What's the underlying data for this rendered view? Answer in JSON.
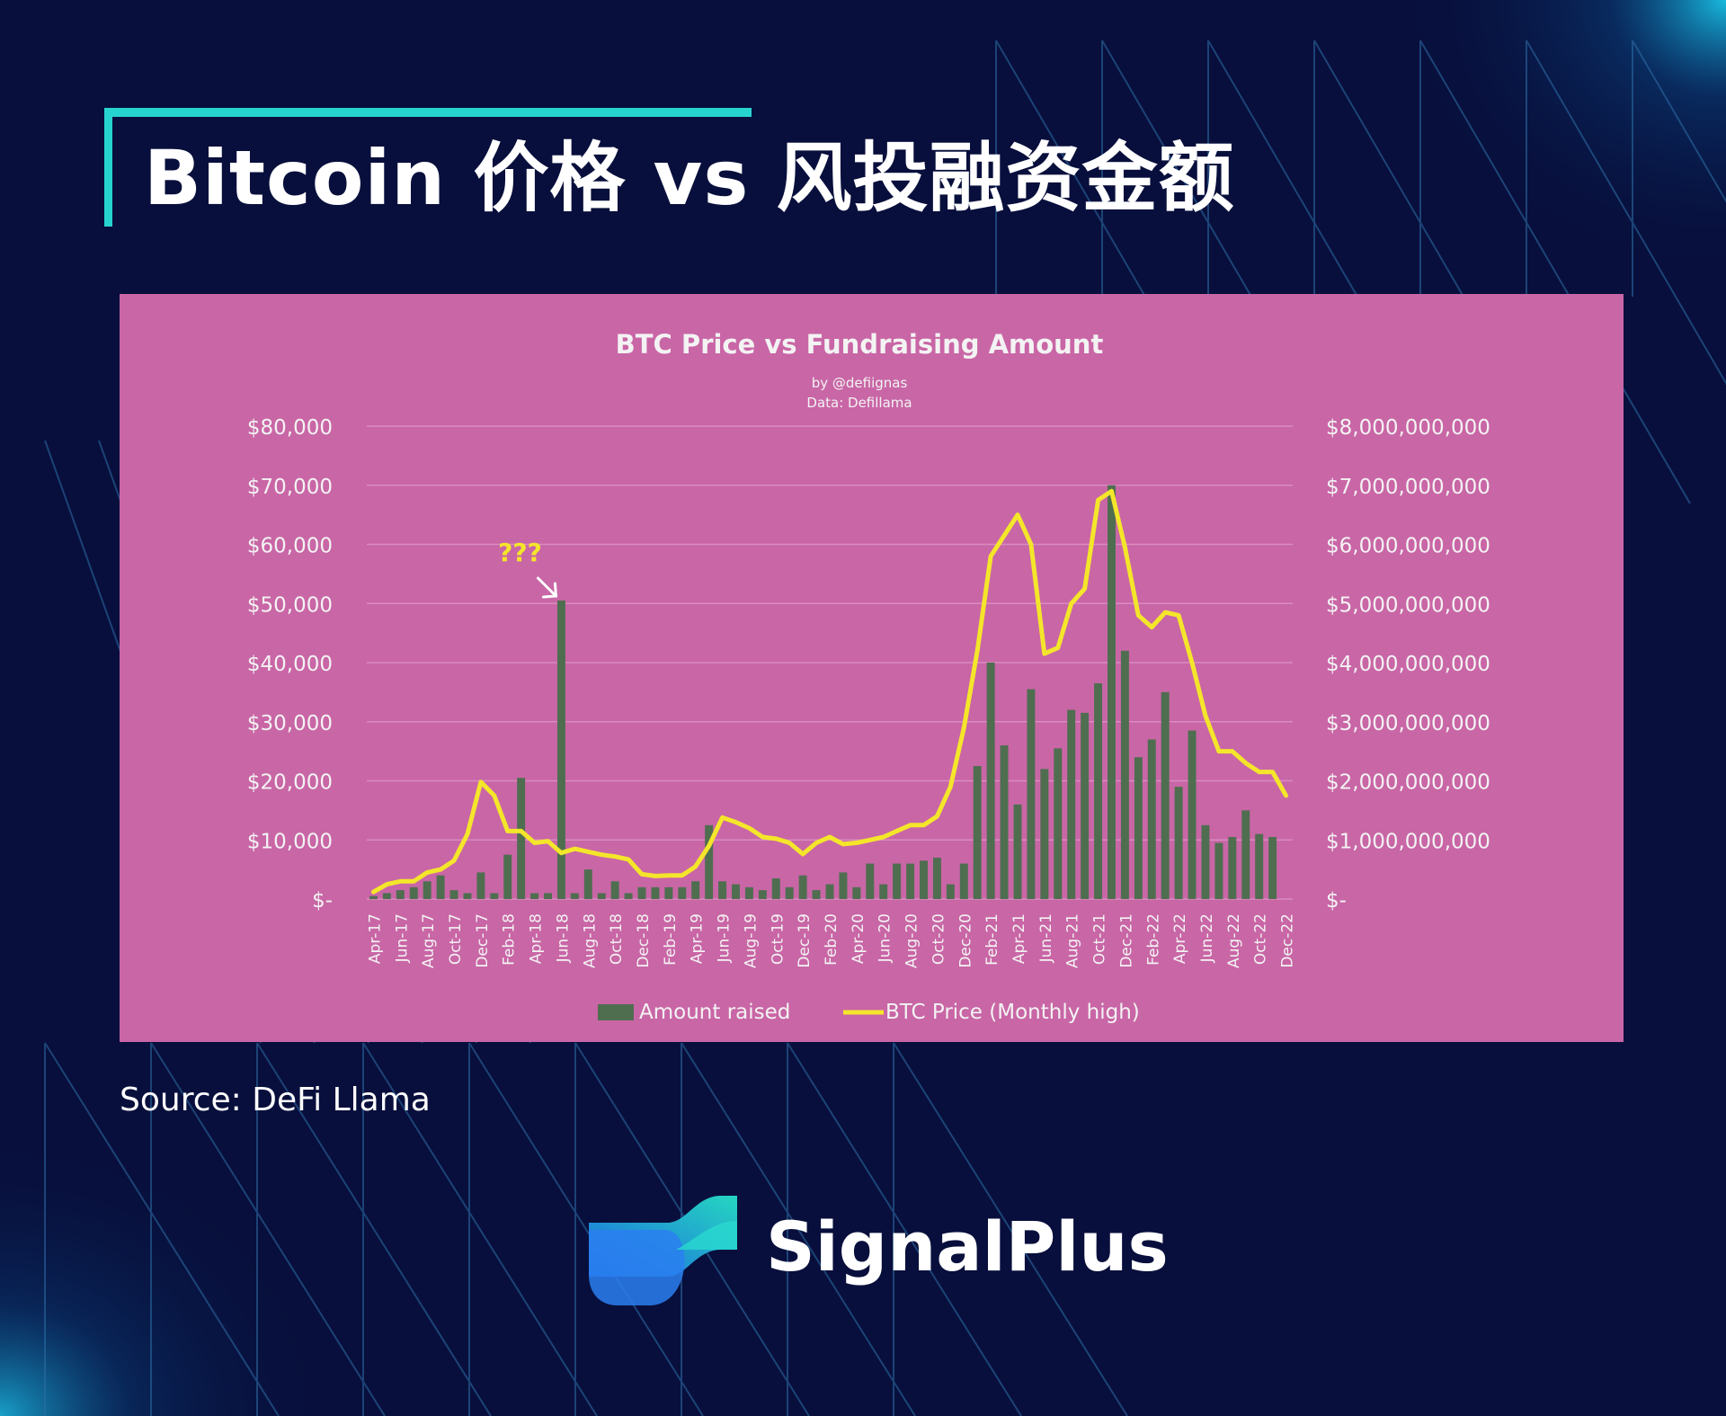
{
  "page": {
    "title": "Bitcoin 价格 vs 风投融资金额",
    "source": "Source: DeFi Llama",
    "brand": "SignalPlus"
  },
  "colors": {
    "background": "#080f3c",
    "accent": "#27d3cf",
    "chart_background": "#c966a6",
    "bar": "#4f6e50",
    "line": "#f4e62a",
    "annotation": "#f4e62a"
  },
  "icons": {
    "brand_logo": "signalplus-logo",
    "annotation_arrow": "arrow-down-right-icon"
  },
  "chart_data": {
    "type": "bar",
    "title": "BTC Price vs Fundraising Amount",
    "subtitle_lines": [
      "by @defiignas",
      "Data: Defillama"
    ],
    "annotation": {
      "text": "???",
      "category": "Jun-18"
    },
    "legend": {
      "position": "bottom",
      "items": [
        "Amount raised",
        "BTC Price (Monthly high)"
      ]
    },
    "y_left": {
      "ylim": [
        0,
        80000
      ],
      "ticks": [
        0,
        10000,
        20000,
        30000,
        40000,
        50000,
        60000,
        70000,
        80000
      ],
      "tick_labels": [
        "$-",
        "$10,000",
        "$20,000",
        "$30,000",
        "$40,000",
        "$50,000",
        "$60,000",
        "$70,000",
        "$80,000"
      ]
    },
    "y_right": {
      "ylim": [
        0,
        8000000000
      ],
      "ticks": [
        0,
        1000000000,
        2000000000,
        3000000000,
        4000000000,
        5000000000,
        6000000000,
        7000000000,
        8000000000
      ],
      "tick_labels": [
        "$-",
        "$1,000,000,000",
        "$2,000,000,000",
        "$3,000,000,000",
        "$4,000,000,000",
        "$5,000,000,000",
        "$6,000,000,000",
        "$7,000,000,000",
        "$8,000,000,000"
      ]
    },
    "grid": true,
    "categories": [
      "Apr-17",
      "May-17",
      "Jun-17",
      "Jul-17",
      "Aug-17",
      "Sep-17",
      "Oct-17",
      "Nov-17",
      "Dec-17",
      "Jan-18",
      "Feb-18",
      "Mar-18",
      "Apr-18",
      "May-18",
      "Jun-18",
      "Jul-18",
      "Aug-18",
      "Sep-18",
      "Oct-18",
      "Nov-18",
      "Dec-18",
      "Jan-19",
      "Feb-19",
      "Mar-19",
      "Apr-19",
      "May-19",
      "Jun-19",
      "Jul-19",
      "Aug-19",
      "Sep-19",
      "Oct-19",
      "Nov-19",
      "Dec-19",
      "Jan-20",
      "Feb-20",
      "Mar-20",
      "Apr-20",
      "May-20",
      "Jun-20",
      "Jul-20",
      "Aug-20",
      "Sep-20",
      "Oct-20",
      "Nov-20",
      "Dec-20",
      "Jan-21",
      "Feb-21",
      "Mar-21",
      "Apr-21",
      "May-21",
      "Jun-21",
      "Jul-21",
      "Aug-21",
      "Sep-21",
      "Oct-21",
      "Nov-21",
      "Dec-21",
      "Jan-22",
      "Feb-22",
      "Mar-22",
      "Apr-22",
      "May-22",
      "Jun-22",
      "Jul-22",
      "Aug-22",
      "Sep-22",
      "Oct-22",
      "Nov-22",
      "Dec-22"
    ],
    "tick_labels": [
      "Apr-17",
      "Jun-17",
      "Aug-17",
      "Oct-17",
      "Dec-17",
      "Feb-18",
      "Apr-18",
      "Jun-18",
      "Aug-18",
      "Oct-18",
      "Dec-18",
      "Feb-19",
      "Apr-19",
      "Jun-19",
      "Aug-19",
      "Oct-19",
      "Dec-19",
      "Feb-20",
      "Apr-20",
      "Jun-20",
      "Aug-20",
      "Oct-20",
      "Dec-20",
      "Feb-21",
      "Apr-21",
      "Jun-21",
      "Aug-21",
      "Oct-21",
      "Dec-21",
      "Feb-22",
      "Apr-22",
      "Jun-22",
      "Aug-22",
      "Oct-22",
      "Dec-22"
    ],
    "series": [
      {
        "name": "Amount raised",
        "type": "bar",
        "axis": "right",
        "values": [
          50000000,
          100000000,
          150000000,
          200000000,
          300000000,
          400000000,
          150000000,
          100000000,
          450000000,
          100000000,
          750000000,
          2050000000,
          100000000,
          100000000,
          5050000000,
          100000000,
          500000000,
          100000000,
          300000000,
          100000000,
          200000000,
          200000000,
          200000000,
          200000000,
          300000000,
          1250000000,
          300000000,
          250000000,
          200000000,
          150000000,
          350000000,
          200000000,
          400000000,
          150000000,
          250000000,
          450000000,
          200000000,
          600000000,
          250000000,
          600000000,
          600000000,
          650000000,
          700000000,
          250000000,
          600000000,
          2250000000,
          4000000000,
          2600000000,
          1600000000,
          3550000000,
          2200000000,
          2550000000,
          3200000000,
          3150000000,
          3650000000,
          7000000000,
          4200000000,
          2400000000,
          2700000000,
          3500000000,
          1900000000,
          2850000000,
          1250000000,
          950000000,
          1050000000,
          1500000000,
          1100000000,
          1050000000,
          0
        ]
      },
      {
        "name": "BTC Price (Monthly high)",
        "type": "line",
        "axis": "left",
        "values": [
          1200,
          2500,
          3000,
          3000,
          4500,
          5000,
          6500,
          11000,
          19800,
          17500,
          11500,
          11500,
          9500,
          9800,
          7800,
          8500,
          8000,
          7500,
          7200,
          6700,
          4200,
          3900,
          4000,
          4000,
          5500,
          9000,
          13800,
          13000,
          12000,
          10500,
          10200,
          9500,
          7600,
          9500,
          10500,
          9300,
          9500,
          10000,
          10500,
          11500,
          12500,
          12500,
          14000,
          19000,
          29000,
          42000,
          58000,
          61500,
          65000,
          60000,
          41500,
          42500,
          50000,
          52500,
          67500,
          69000,
          59500,
          48000,
          46000,
          48500,
          48000,
          40000,
          31000,
          25000,
          25000,
          23000,
          21500,
          21500,
          17500
        ]
      }
    ]
  }
}
